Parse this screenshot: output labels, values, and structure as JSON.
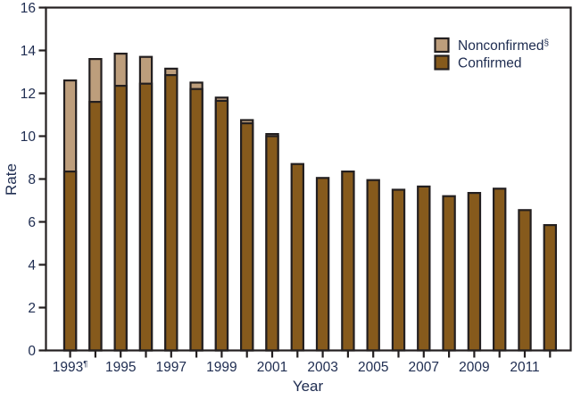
{
  "figure": {
    "background": "#ffffff",
    "text_color": "#202e52",
    "axis_color": "#231f20"
  },
  "chart_data": {
    "type": "bar",
    "stacked": true,
    "title": "",
    "xlabel": "Year",
    "ylabel": "Rate",
    "ylim": [
      0,
      16
    ],
    "ytick_interval": 2,
    "yticks": [
      0,
      2,
      4,
      6,
      8,
      10,
      12,
      14,
      16
    ],
    "categories": [
      "1993",
      "1994",
      "1995",
      "1996",
      "1997",
      "1998",
      "1999",
      "2000",
      "2001",
      "2002",
      "2003",
      "2004",
      "2005",
      "2006",
      "2007",
      "2008",
      "2009",
      "2010",
      "2011",
      "2012"
    ],
    "xtick_labels": [
      {
        "index": 0,
        "text": "1993",
        "sup": "¶"
      },
      {
        "index": 2,
        "text": "1995",
        "sup": ""
      },
      {
        "index": 4,
        "text": "1997",
        "sup": ""
      },
      {
        "index": 6,
        "text": "1999",
        "sup": ""
      },
      {
        "index": 8,
        "text": "2001",
        "sup": ""
      },
      {
        "index": 10,
        "text": "2003",
        "sup": ""
      },
      {
        "index": 12,
        "text": "2005",
        "sup": ""
      },
      {
        "index": 14,
        "text": "2007",
        "sup": ""
      },
      {
        "index": 16,
        "text": "2009",
        "sup": ""
      },
      {
        "index": 18,
        "text": "2011",
        "sup": ""
      }
    ],
    "series": [
      {
        "name": "Nonconfirmed",
        "sup": "§",
        "color": "#bd9e7c",
        "stack_order": "top",
        "values": [
          4.25,
          2.0,
          1.5,
          1.25,
          0.3,
          0.3,
          0.15,
          0.15,
          0.1,
          0,
          0,
          0,
          0,
          0,
          0,
          0,
          0,
          0,
          0,
          0
        ]
      },
      {
        "name": "Confirmed",
        "sup": "",
        "color": "#865a1c",
        "stack_order": "bottom",
        "values": [
          8.35,
          11.6,
          12.35,
          12.45,
          12.85,
          12.2,
          11.65,
          10.6,
          10.0,
          8.7,
          8.05,
          8.35,
          7.95,
          7.5,
          7.65,
          7.2,
          7.35,
          7.55,
          6.55,
          5.85
        ]
      }
    ],
    "legend": {
      "position": "top-right",
      "entries": [
        "Nonconfirmed§",
        "Confirmed"
      ]
    },
    "grid": false,
    "bar_outline_color": "#231f20"
  }
}
